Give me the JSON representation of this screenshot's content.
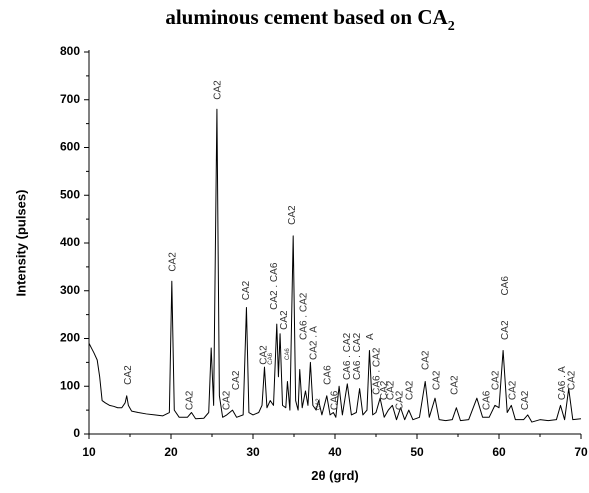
{
  "chart_data": {
    "type": "line",
    "title": "aluminous cement  based on CA",
    "title_subscript": "2",
    "x_label": "2θ (grd)",
    "y_label": "Intensity (pulses)",
    "color": "#000000",
    "xlim": [
      10,
      70
    ],
    "ylim": [
      0,
      800
    ],
    "xticks": [
      10,
      20,
      30,
      40,
      50,
      60,
      70
    ],
    "yticks": [
      0,
      100,
      200,
      300,
      400,
      500,
      600,
      700,
      800
    ],
    "x": [
      10,
      10.3,
      10.6,
      11,
      11.3,
      11.6,
      12,
      12.5,
      13,
      13.5,
      14,
      14.4,
      14.6,
      14.8,
      15.2,
      16,
      17,
      18,
      19,
      19.8,
      20.1,
      20.4,
      21,
      22,
      22.5,
      23,
      24,
      24.6,
      24.9,
      25.2,
      25.6,
      25.9,
      26.3,
      26.8,
      27.5,
      28,
      28.8,
      29.2,
      29.5,
      30,
      30.7,
      31.1,
      31.4,
      31.7,
      32.1,
      32.5,
      32.9,
      33.1,
      33.3,
      33.6,
      34,
      34.2,
      34.5,
      34.9,
      35.2,
      35.5,
      35.7,
      36,
      36.4,
      36.7,
      37,
      37.3,
      37.7,
      38,
      38.4,
      39,
      39.4,
      39.8,
      40.1,
      40.5,
      40.9,
      41.5,
      42,
      42.6,
      43,
      43.4,
      43.9,
      44.2,
      44.6,
      45,
      45.5,
      46,
      46.5,
      47,
      47.5,
      48,
      48.5,
      49,
      49.5,
      50.3,
      51,
      51.5,
      52.2,
      52.7,
      53.5,
      54.3,
      54.8,
      55.3,
      56.3,
      57.3,
      58,
      58.8,
      59.5,
      60,
      60.5,
      61,
      61.5,
      62,
      63,
      63.5,
      64,
      65,
      66,
      67,
      67.5,
      68,
      68.5,
      69,
      70
    ],
    "values": [
      190,
      180,
      170,
      155,
      120,
      70,
      65,
      60,
      58,
      55,
      55,
      65,
      80,
      60,
      48,
      45,
      42,
      40,
      38,
      45,
      320,
      50,
      35,
      35,
      45,
      32,
      33,
      45,
      180,
      60,
      680,
      80,
      35,
      40,
      50,
      35,
      40,
      265,
      45,
      40,
      45,
      60,
      140,
      55,
      70,
      60,
      230,
      120,
      210,
      60,
      55,
      110,
      50,
      415,
      70,
      50,
      135,
      55,
      90,
      60,
      150,
      60,
      50,
      70,
      40,
      80,
      40,
      45,
      35,
      100,
      40,
      105,
      40,
      45,
      95,
      40,
      50,
      175,
      40,
      45,
      75,
      35,
      50,
      60,
      30,
      55,
      30,
      50,
      30,
      35,
      110,
      35,
      75,
      30,
      28,
      30,
      55,
      28,
      30,
      75,
      35,
      35,
      60,
      55,
      175,
      45,
      60,
      30,
      30,
      40,
      25,
      30,
      28,
      30,
      60,
      30,
      95,
      30,
      32
    ],
    "annotations": [
      {
        "text": "CA2",
        "x": 14.8,
        "y": 103
      },
      {
        "text": "CA2",
        "x": 20.2,
        "y": 340
      },
      {
        "text": "CA2",
        "x": 22.3,
        "y": 50
      },
      {
        "text": "CA2",
        "x": 25.7,
        "y": 700
      },
      {
        "text": "CA2",
        "x": 26.8,
        "y": 50
      },
      {
        "text": "CA2",
        "x": 28.0,
        "y": 92
      },
      {
        "text": "CA2",
        "x": 29.2,
        "y": 280
      },
      {
        "text": "CA2",
        "x": 31.3,
        "y": 145
      },
      {
        "text": "CA6",
        "x": 32.1,
        "y": 145,
        "small": true
      },
      {
        "text": "CA2 . CA6",
        "x": 32.6,
        "y": 260
      },
      {
        "text": "CA2",
        "x": 33.8,
        "y": 218
      },
      {
        "text": "CA6",
        "x": 34.2,
        "y": 155,
        "small": true
      },
      {
        "text": "CA2",
        "x": 34.8,
        "y": 438
      },
      {
        "text": "CA6 . CA2",
        "x": 36.2,
        "y": 197
      },
      {
        "text": "CA2 . A",
        "x": 37.4,
        "y": 155
      },
      {
        "text": "CA2",
        "x": 38.0,
        "y": 50,
        "small": true
      },
      {
        "text": "CA6",
        "x": 39.1,
        "y": 103
      },
      {
        "text": "CA6",
        "x": 40.0,
        "y": 50
      },
      {
        "text": "CA6 . CA2",
        "x": 41.5,
        "y": 113
      },
      {
        "text": "CA6 . CA2",
        "x": 42.7,
        "y": 113
      },
      {
        "text": "A",
        "x": 44.3,
        "y": 197
      },
      {
        "text": "CA6 . CA2",
        "x": 45.1,
        "y": 82
      },
      {
        "text": "CA2",
        "x": 46.0,
        "y": 71
      },
      {
        "text": "CA2",
        "x": 46.8,
        "y": 71
      },
      {
        "text": "CA2",
        "x": 47.9,
        "y": 50
      },
      {
        "text": "CA2",
        "x": 49.1,
        "y": 71
      },
      {
        "text": "CA2",
        "x": 51.1,
        "y": 134
      },
      {
        "text": "CA2",
        "x": 52.4,
        "y": 92
      },
      {
        "text": "CA2",
        "x": 54.6,
        "y": 82
      },
      {
        "text": "CA6",
        "x": 58.5,
        "y": 50
      },
      {
        "text": "CA2",
        "x": 59.6,
        "y": 92
      },
      {
        "text": "CA2",
        "x": 60.8,
        "y": 197
      },
      {
        "text": "CA6",
        "x": 60.8,
        "y": 290
      },
      {
        "text": "CA2",
        "x": 61.7,
        "y": 71
      },
      {
        "text": "CA2",
        "x": 63.2,
        "y": 50
      },
      {
        "text": "CA6 . A",
        "x": 67.7,
        "y": 71
      },
      {
        "text": "CA2",
        "x": 68.9,
        "y": 92
      }
    ]
  }
}
